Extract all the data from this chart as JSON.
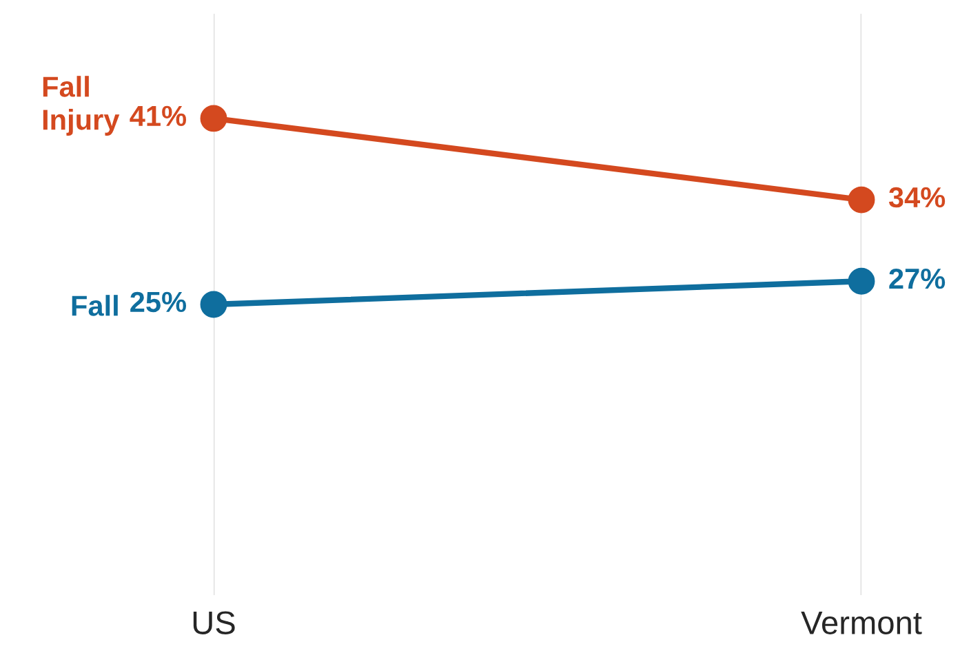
{
  "chart_data": {
    "type": "line",
    "categories": [
      "US",
      "Vermont"
    ],
    "ylim": [
      0,
      50
    ],
    "grid": "x",
    "marker": "circle",
    "line_style": "solid",
    "legend": false,
    "series": [
      {
        "name": "Fall Injury",
        "color": "#d4491f",
        "values": [
          41,
          34
        ],
        "value_labels": [
          "41%",
          "34%"
        ]
      },
      {
        "name": "Fall",
        "color": "#0f6e9e",
        "values": [
          25,
          27
        ],
        "value_labels": [
          "25%",
          "27%"
        ]
      }
    ]
  }
}
